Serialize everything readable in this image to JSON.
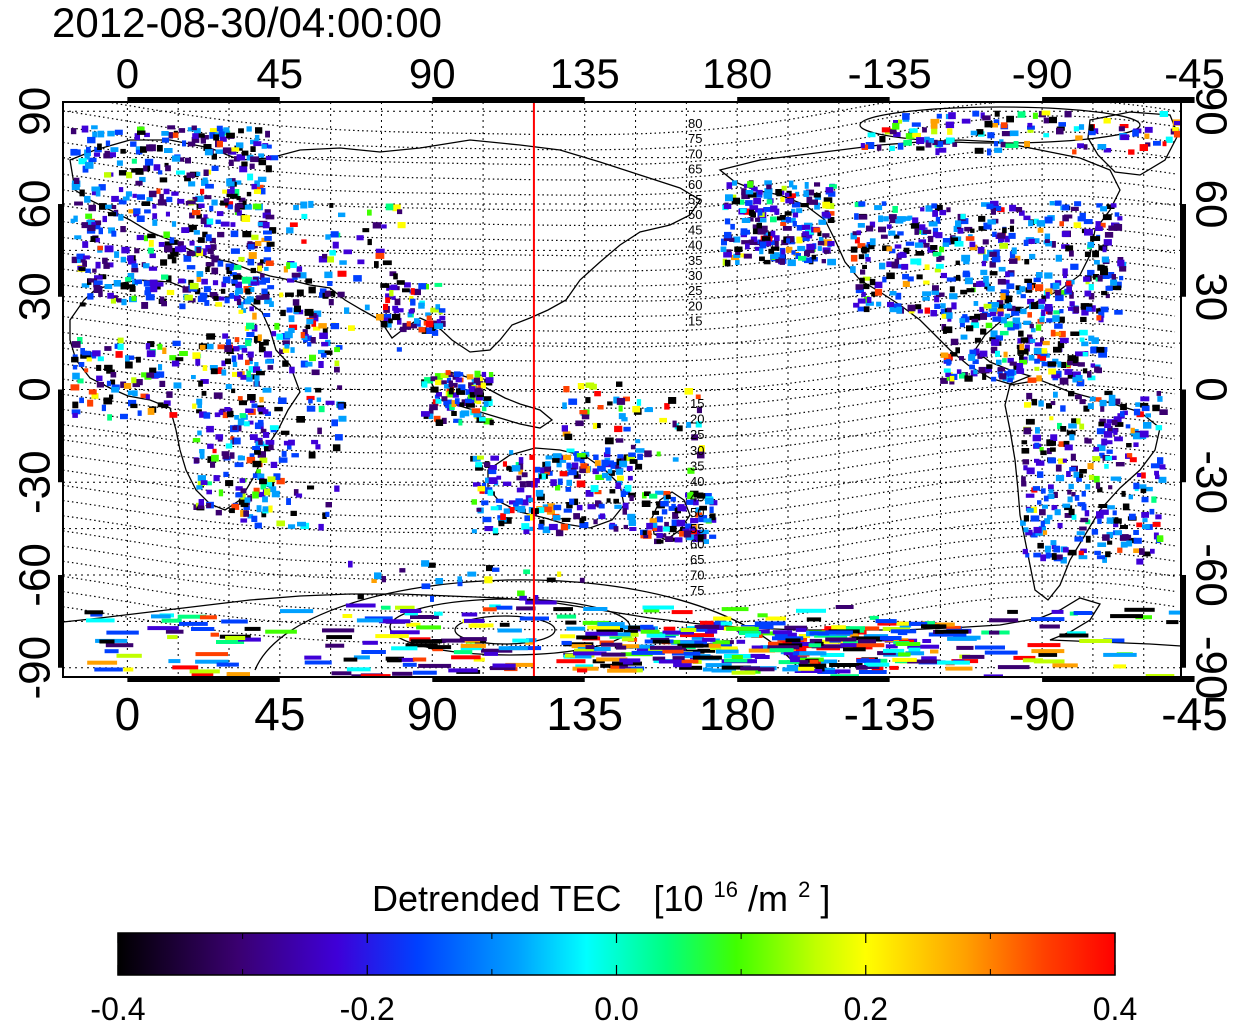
{
  "timestamp": "2012-08-30/04:00:00",
  "map": {
    "top_lon_ticks": [
      "0",
      "45",
      "90",
      "135",
      "180",
      "-135",
      "-90",
      "-45"
    ],
    "bottom_lon_ticks": [
      "0",
      "45",
      "90",
      "135",
      "180",
      "-135",
      "-90",
      "-45"
    ],
    "left_lat_ticks": [
      "90",
      "60",
      "30",
      "0",
      "-30",
      "-60",
      "-90"
    ],
    "right_lat_ticks": [
      "90",
      "60",
      "30",
      "0",
      "-30",
      "-60",
      "-90"
    ],
    "lon_range": [
      -19,
      311
    ],
    "lat_range": [
      -93,
      93
    ],
    "marker_line_lon": 120,
    "marker_line_color": "#ff0000",
    "contour_labels_north": [
      "80",
      "75",
      "70",
      "65",
      "60",
      "55",
      "50",
      "45",
      "40",
      "35",
      "30",
      "25",
      "20",
      "15"
    ],
    "contour_labels_south": [
      "15",
      "20",
      "25",
      "30",
      "35",
      "40",
      "45",
      "50",
      "55",
      "60",
      "65",
      "70",
      "75"
    ]
  },
  "colorbar": {
    "title": "Detrended TEC",
    "unit_prefix": "[10",
    "unit_exp": "16",
    "unit_mid": "/m",
    "unit_exp2": "2",
    "unit_suffix": "]",
    "ticks": [
      "-0.4",
      "-0.2",
      "0.0",
      "0.2",
      "0.4"
    ],
    "range": [
      -0.4,
      0.4
    ],
    "colors": [
      "#000000",
      "#3a0070",
      "#3f00d8",
      "#0040ff",
      "#00a0ff",
      "#00ffff",
      "#00ff80",
      "#40ff00",
      "#c0ff00",
      "#ffff00",
      "#ffa000",
      "#ff4000",
      "#ff0000"
    ]
  }
}
